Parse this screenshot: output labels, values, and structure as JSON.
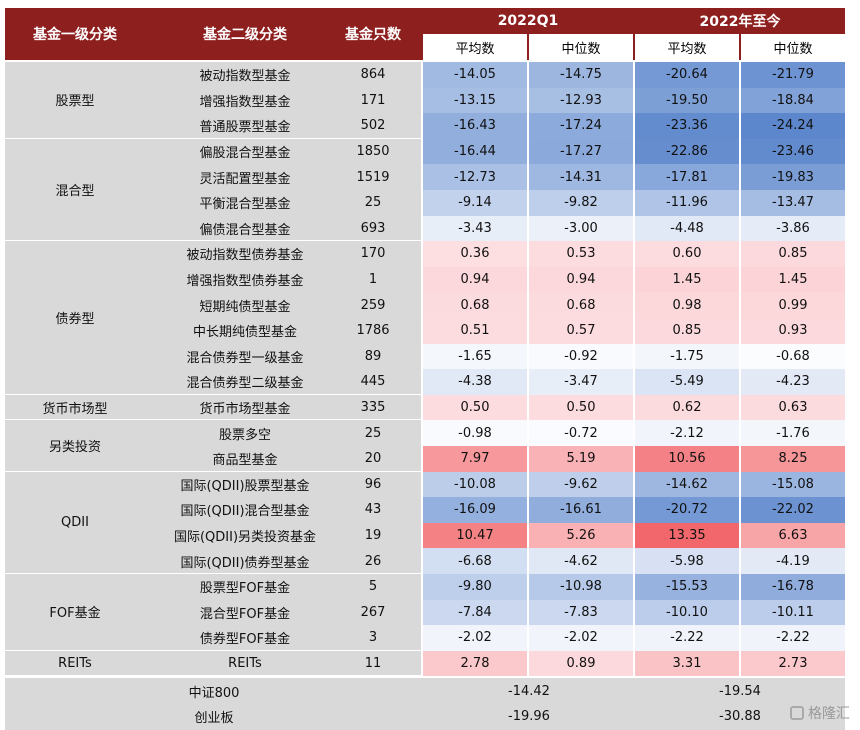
{
  "header": {
    "col1": "基金一级分类",
    "col2": "基金二级分类",
    "col3": "基金只数",
    "period1": "2022Q1",
    "period2": "2022年至今",
    "avg": "平均数",
    "median": "中位数"
  },
  "groups": [
    {
      "name": "股票型",
      "rows": 3
    },
    {
      "name": "混合型",
      "rows": 4
    },
    {
      "name": "债券型",
      "rows": 6
    },
    {
      "name": "货币市场型",
      "rows": 1
    },
    {
      "name": "另类投资",
      "rows": 2
    },
    {
      "name": "QDII",
      "rows": 4
    },
    {
      "name": "FOF基金",
      "rows": 3
    },
    {
      "name": "REITs",
      "rows": 1
    }
  ],
  "rows": [
    {
      "sub": "被动指数型基金",
      "count": "864",
      "v": [
        "-14.05",
        "-14.75",
        "-20.64",
        "-21.79"
      ]
    },
    {
      "sub": "增强指数型基金",
      "count": "171",
      "v": [
        "-13.15",
        "-12.93",
        "-19.50",
        "-18.84"
      ]
    },
    {
      "sub": "普通股票型基金",
      "count": "502",
      "v": [
        "-16.43",
        "-17.24",
        "-23.36",
        "-24.24"
      ]
    },
    {
      "sub": "偏股混合型基金",
      "count": "1850",
      "v": [
        "-16.44",
        "-17.27",
        "-22.86",
        "-23.46"
      ]
    },
    {
      "sub": "灵活配置型基金",
      "count": "1519",
      "v": [
        "-12.73",
        "-14.31",
        "-17.81",
        "-19.83"
      ]
    },
    {
      "sub": "平衡混合型基金",
      "count": "25",
      "v": [
        "-9.14",
        "-9.82",
        "-11.96",
        "-13.47"
      ]
    },
    {
      "sub": "偏债混合型基金",
      "count": "693",
      "v": [
        "-3.43",
        "-3.00",
        "-4.48",
        "-3.86"
      ]
    },
    {
      "sub": "被动指数型债券基金",
      "count": "170",
      "v": [
        "0.36",
        "0.53",
        "0.60",
        "0.85"
      ]
    },
    {
      "sub": "增强指数型债券基金",
      "count": "1",
      "v": [
        "0.94",
        "0.94",
        "1.45",
        "1.45"
      ]
    },
    {
      "sub": "短期纯债型基金",
      "count": "259",
      "v": [
        "0.68",
        "0.68",
        "0.98",
        "0.99"
      ]
    },
    {
      "sub": "中长期纯债型基金",
      "count": "1786",
      "v": [
        "0.51",
        "0.57",
        "0.85",
        "0.93"
      ]
    },
    {
      "sub": "混合债券型一级基金",
      "count": "89",
      "v": [
        "-1.65",
        "-0.92",
        "-1.75",
        "-0.68"
      ]
    },
    {
      "sub": "混合债券型二级基金",
      "count": "445",
      "v": [
        "-4.38",
        "-3.47",
        "-5.49",
        "-4.23"
      ]
    },
    {
      "sub": "货币市场型基金",
      "count": "335",
      "v": [
        "0.50",
        "0.50",
        "0.62",
        "0.63"
      ]
    },
    {
      "sub": "股票多空",
      "count": "25",
      "v": [
        "-0.98",
        "-0.72",
        "-2.12",
        "-1.76"
      ]
    },
    {
      "sub": "商品型基金",
      "count": "20",
      "v": [
        "7.97",
        "5.19",
        "10.56",
        "8.25"
      ]
    },
    {
      "sub": "国际(QDII)股票型基金",
      "count": "96",
      "v": [
        "-10.08",
        "-9.62",
        "-14.62",
        "-15.08"
      ]
    },
    {
      "sub": "国际(QDII)混合型基金",
      "count": "43",
      "v": [
        "-16.09",
        "-16.61",
        "-20.72",
        "-22.02"
      ]
    },
    {
      "sub": "国际(QDII)另类投资基金",
      "count": "19",
      "v": [
        "10.47",
        "5.26",
        "13.35",
        "6.63"
      ]
    },
    {
      "sub": "国际(QDII)债券型基金",
      "count": "26",
      "v": [
        "-6.68",
        "-4.62",
        "-5.98",
        "-4.19"
      ]
    },
    {
      "sub": "股票型FOF基金",
      "count": "5",
      "v": [
        "-9.80",
        "-10.98",
        "-15.53",
        "-16.78"
      ]
    },
    {
      "sub": "混合型FOF基金",
      "count": "267",
      "v": [
        "-7.84",
        "-7.83",
        "-10.10",
        "-10.11"
      ]
    },
    {
      "sub": "债券型FOF基金",
      "count": "3",
      "v": [
        "-2.02",
        "-2.02",
        "-2.22",
        "-2.22"
      ]
    },
    {
      "sub": "REITs",
      "count": "11",
      "v": [
        "2.78",
        "0.89",
        "3.31",
        "2.73"
      ]
    }
  ],
  "footer": [
    {
      "name": "中证800",
      "q1": "-14.42",
      "ytd": "-19.54"
    },
    {
      "name": "创业板",
      "q1": "-19.96",
      "ytd": "-30.88"
    }
  ],
  "colors": {
    "header_bg": "#8e1f1f",
    "negative": "#5b86cc",
    "positive": "#f2666a",
    "group_bg": "#d9d9d9"
  },
  "watermark": "格隆汇"
}
